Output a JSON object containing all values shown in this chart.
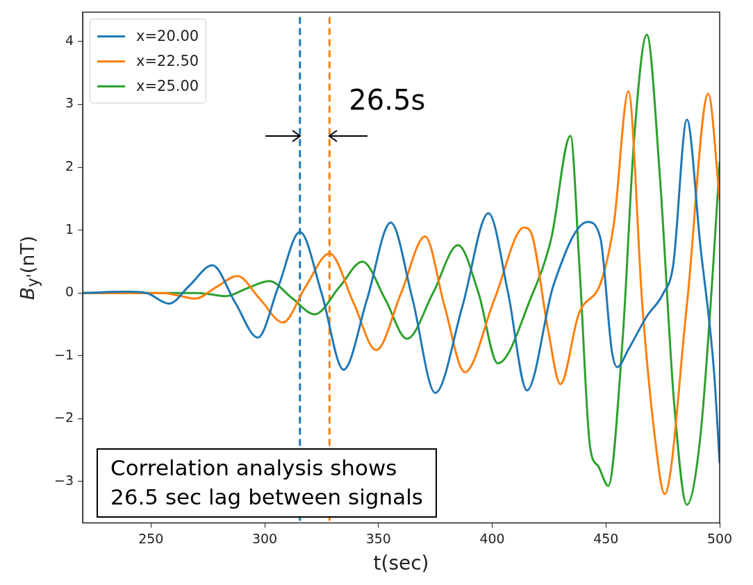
{
  "chart_data": {
    "type": "line",
    "ylabel": "B$_{y'}$(nT)",
    "xlabel": "t(sec)",
    "xlim": [
      220,
      500
    ],
    "xticks": [
      250,
      300,
      350,
      400,
      450,
      500
    ],
    "ylim": [
      -3.66,
      4.47
    ],
    "yticks": [
      -3,
      -2,
      -1,
      0,
      1,
      2,
      3,
      4
    ],
    "grid": false,
    "legend": "top left",
    "marker": "none",
    "line_style": "solid",
    "series": [
      {
        "name": "x=20.00",
        "color": "#1f77b4",
        "x": [
          220,
          240,
          248,
          258,
          267,
          277,
          287,
          297,
          306,
          315.5,
          325,
          334.7,
          345,
          355.4,
          365,
          375,
          387,
          398.4,
          407,
          415.3,
          427,
          442,
          447.6,
          452.6,
          455,
          460,
          468,
          475,
          479.6,
          485.6,
          491.5,
          497.5,
          500
        ],
        "values": [
          0,
          0.02,
          0,
          -0.17,
          0.12,
          0.44,
          -0.15,
          -0.71,
          0.1,
          0.97,
          0,
          -1.22,
          -0.1,
          1.12,
          -0.1,
          -1.59,
          -0.2,
          1.27,
          0,
          -1.55,
          0.13,
          1.13,
          0.87,
          -0.92,
          -1.18,
          -0.89,
          -0.37,
          -0.02,
          0.45,
          2.76,
          0.76,
          -1.24,
          -2.7
        ]
      },
      {
        "name": "x=22.50",
        "color": "#ff7f0e",
        "x": [
          220,
          255,
          262,
          269.5,
          279,
          288,
          298,
          308,
          318,
          328.5,
          339,
          349,
          360,
          370.5,
          379,
          388,
          401,
          414,
          417,
          424.4,
          430,
          438,
          448,
          453.6,
          459.9,
          466,
          471.5,
          475.8,
          485.6,
          495,
          500
        ],
        "values": [
          0,
          0,
          -0.04,
          -0.09,
          0.1,
          0.27,
          -0.1,
          -0.47,
          0.1,
          0.63,
          -0.15,
          -0.91,
          0,
          0.9,
          -0.2,
          -1.26,
          -0.1,
          1.04,
          0.97,
          -0.55,
          -1.45,
          -0.34,
          0.19,
          1.13,
          3.21,
          -0.19,
          -2.29,
          -3.2,
          -0.19,
          3.17,
          1.5
        ]
      },
      {
        "name": "x=25.00",
        "color": "#2ca02c",
        "x": [
          220,
          270,
          276,
          283,
          292,
          302,
          312,
          322,
          333,
          343,
          353,
          362.6,
          374,
          385,
          394,
          402.5,
          417,
          426,
          434.4,
          438.5,
          443,
          446.7,
          451,
          457.4,
          462.4,
          468,
          473.6,
          480,
          485.6,
          491.5,
          497,
          500
        ],
        "values": [
          0,
          0,
          -0.02,
          -0.05,
          0.07,
          0.19,
          -0.08,
          -0.34,
          0.1,
          0.5,
          -0.1,
          -0.73,
          0,
          0.76,
          0,
          -1.12,
          -0.08,
          0.87,
          2.5,
          0.34,
          -2.44,
          -2.76,
          -3.07,
          -0.71,
          2.45,
          4.11,
          1.92,
          -1.76,
          -3.37,
          -2.29,
          0.34,
          2.08
        ]
      }
    ],
    "ref_lines": [
      {
        "axis": "x",
        "value": 315.5,
        "color": "#1f77b4",
        "line_style": "dashed"
      },
      {
        "axis": "x",
        "value": 328.5,
        "color": "#ff7f0e",
        "line_style": "dashed"
      }
    ],
    "annotations": [
      "26.5s",
      "Correlation analysis shows\n26.5 sec lag between signals"
    ]
  }
}
